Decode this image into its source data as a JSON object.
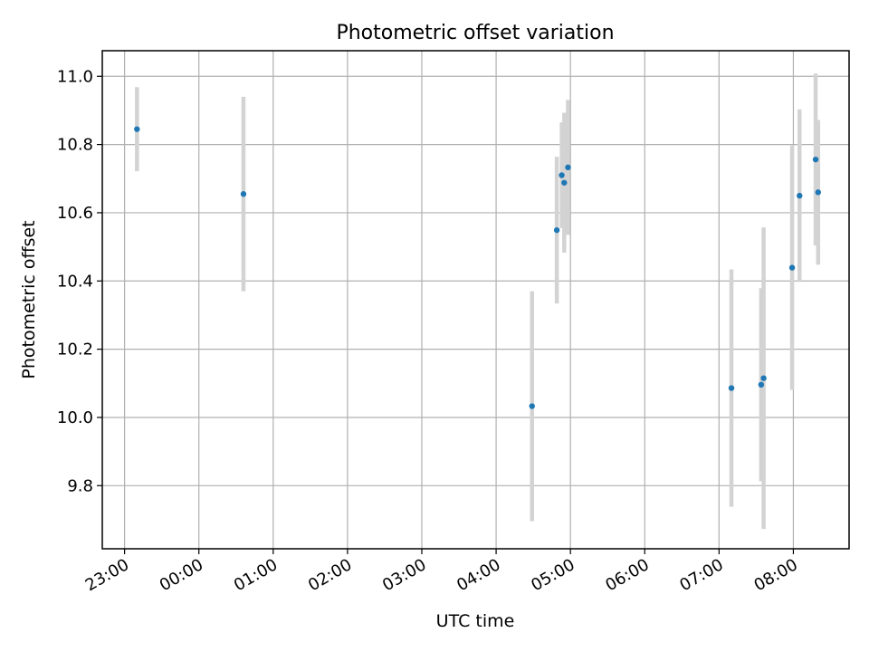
{
  "chart_data": {
    "type": "scatter",
    "title": "Photometric offset variation",
    "xlabel": "UTC time",
    "ylabel": "Photometric offset",
    "x_axis": "time",
    "xlim": [
      "22:42",
      "32:45"
    ],
    "ylim": [
      9.615,
      11.075
    ],
    "grid": true,
    "x_ticks": [
      {
        "value": "23:00",
        "label": "23:00"
      },
      {
        "value": "24:00",
        "label": "00:00"
      },
      {
        "value": "25:00",
        "label": "01:00"
      },
      {
        "value": "26:00",
        "label": "02:00"
      },
      {
        "value": "27:00",
        "label": "03:00"
      },
      {
        "value": "28:00",
        "label": "04:00"
      },
      {
        "value": "29:00",
        "label": "05:00"
      },
      {
        "value": "30:00",
        "label": "06:00"
      },
      {
        "value": "31:00",
        "label": "07:00"
      },
      {
        "value": "32:00",
        "label": "08:00"
      }
    ],
    "y_ticks": [
      {
        "value": 9.8,
        "label": "9.8"
      },
      {
        "value": 10.0,
        "label": "10.0"
      },
      {
        "value": 10.2,
        "label": "10.2"
      },
      {
        "value": 10.4,
        "label": "10.4"
      },
      {
        "value": 10.6,
        "label": "10.6"
      },
      {
        "value": 10.8,
        "label": "10.8"
      },
      {
        "value": 11.0,
        "label": "11.0"
      }
    ],
    "marker_color": "#1f77b4",
    "errorbar_color": "#d3d3d3",
    "points": [
      {
        "time": "23:10",
        "y": 10.845,
        "err": 0.123
      },
      {
        "time": "24:36",
        "y": 10.655,
        "err": 0.285
      },
      {
        "time": "28:29",
        "y": 10.033,
        "err": 0.337
      },
      {
        "time": "28:49",
        "y": 10.549,
        "err": 0.215
      },
      {
        "time": "28:53",
        "y": 10.71,
        "err": 0.155
      },
      {
        "time": "28:55",
        "y": 10.688,
        "err": 0.205
      },
      {
        "time": "28:58",
        "y": 10.733,
        "err": 0.198
      },
      {
        "time": "31:10",
        "y": 10.086,
        "err": 0.348
      },
      {
        "time": "31:34",
        "y": 10.096,
        "err": 0.283
      },
      {
        "time": "31:36",
        "y": 10.115,
        "err": 0.442
      },
      {
        "time": "31:59",
        "y": 10.439,
        "err": 0.358
      },
      {
        "time": "32:05",
        "y": 10.65,
        "err": 0.253
      },
      {
        "time": "32:18",
        "y": 10.756,
        "err": 0.252
      },
      {
        "time": "32:20",
        "y": 10.66,
        "err": 0.212
      }
    ]
  }
}
